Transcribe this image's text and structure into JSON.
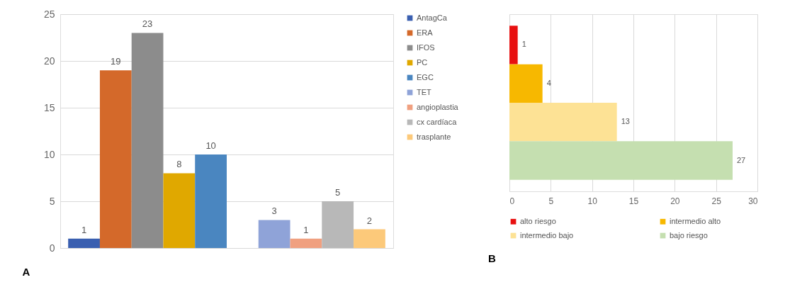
{
  "chart_data": [
    {
      "type": "bar",
      "categories": [
        null,
        null
      ],
      "ylim": [
        0,
        25
      ],
      "yticks": [
        0,
        5,
        10,
        15,
        20,
        25
      ],
      "grid": "y",
      "legend": "right",
      "data_labels": true,
      "annotations": [
        "A"
      ],
      "series": [
        {
          "name": "AntagCa",
          "color": "#3a5fb0",
          "values": [
            1,
            null
          ]
        },
        {
          "name": "ERA",
          "color": "#d4692a",
          "values": [
            19,
            null
          ]
        },
        {
          "name": "IFOS",
          "color": "#8c8c8c",
          "values": [
            23,
            null
          ]
        },
        {
          "name": "PC",
          "color": "#e0a800",
          "values": [
            8,
            null
          ]
        },
        {
          "name": "EGC",
          "color": "#4a86c0",
          "values": [
            10,
            null
          ]
        },
        {
          "name": "TET",
          "color": "#8fa3d8",
          "values": [
            null,
            3
          ]
        },
        {
          "name": "angioplastia",
          "color": "#f0a080",
          "values": [
            null,
            1
          ]
        },
        {
          "name": "cx cardíaca",
          "color": "#b8b8b8",
          "values": [
            null,
            5
          ]
        },
        {
          "name": "trasplante",
          "color": "#fcc97a",
          "values": [
            null,
            2
          ]
        }
      ]
    },
    {
      "type": "bar",
      "orientation": "horizontal",
      "categories": [
        null,
        null,
        null,
        null
      ],
      "xlim": [
        0,
        30
      ],
      "xticks": [
        0,
        5,
        10,
        15,
        20,
        25,
        30
      ],
      "grid": "x",
      "legend": "bottom",
      "data_labels": true,
      "annotations": [
        "B"
      ],
      "series": [
        {
          "name": "alto riesgo",
          "color": "#e81010",
          "values": [
            1,
            null,
            null,
            null
          ]
        },
        {
          "name": "intermedio alto",
          "color": "#f7b800",
          "values": [
            null,
            4,
            null,
            null
          ]
        },
        {
          "name": "intermedio bajo",
          "color": "#fde295",
          "values": [
            null,
            null,
            13,
            null
          ]
        },
        {
          "name": "bajo riesgo",
          "color": "#c5dfb0",
          "values": [
            null,
            null,
            null,
            27
          ]
        }
      ]
    }
  ]
}
